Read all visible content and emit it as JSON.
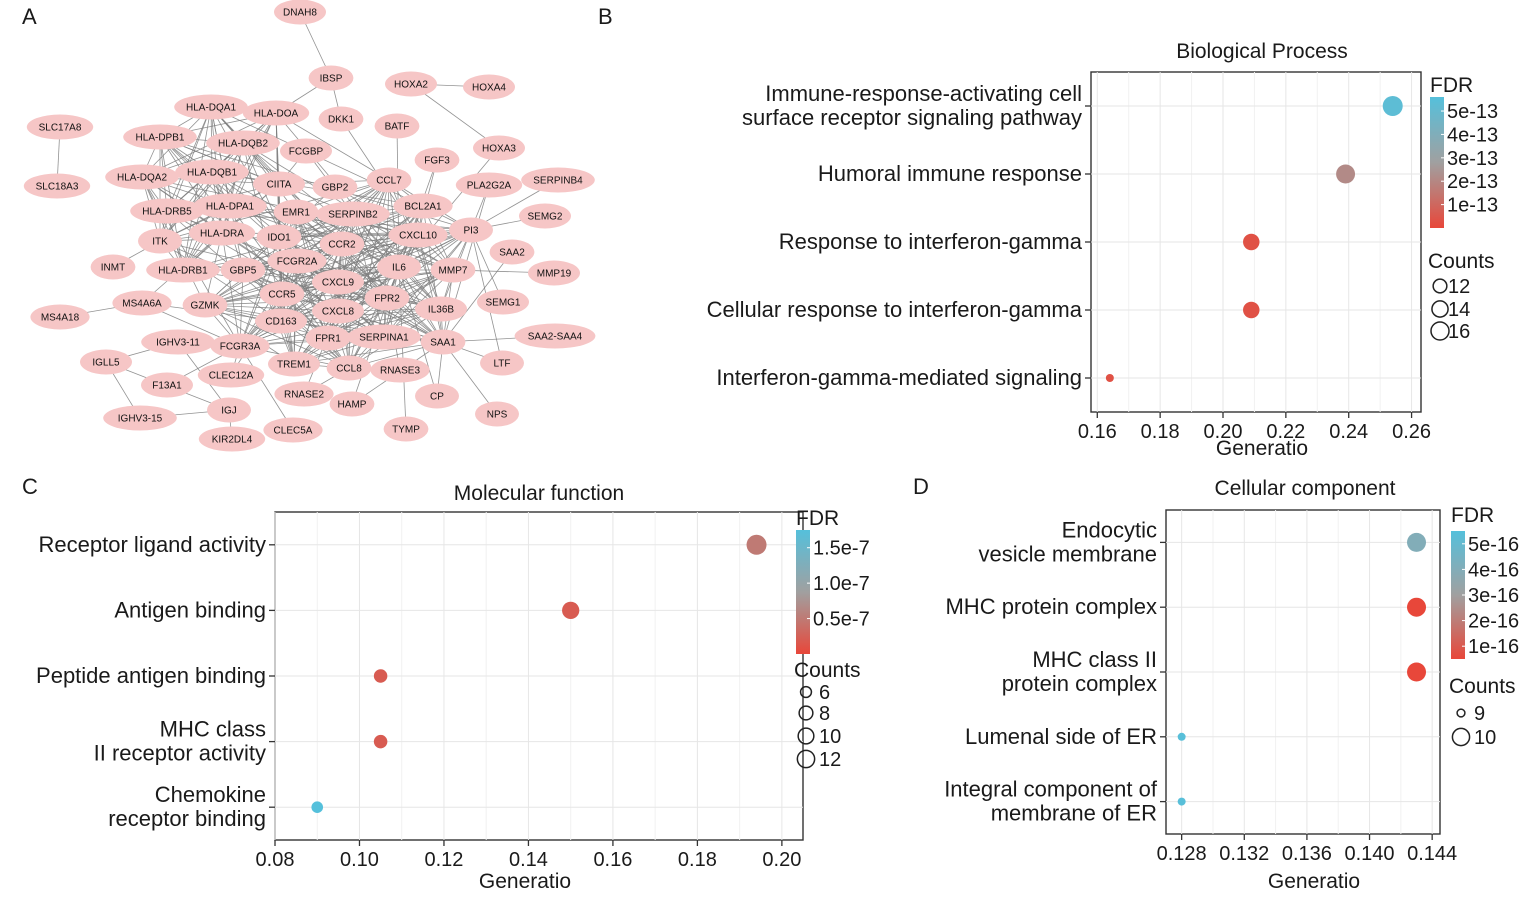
{
  "panels": {
    "A": "A",
    "B": "B",
    "C": "C",
    "D": "D"
  },
  "network": {
    "node_color": "#f6c6c6",
    "edge_color": "#7f7f7f",
    "nodes": [
      "DNAH8",
      "IBSP",
      "HOXA2",
      "HOXA4",
      "HLA-DQA1",
      "HLA-DOA",
      "SLC17A8",
      "HLA-DPB1",
      "HLA-DQB2",
      "DKK1",
      "BATF",
      "HOXA3",
      "FCGBP",
      "HLA-DQA2",
      "HLA-DQB1",
      "CIITA",
      "FGF3",
      "SLC18A3",
      "GBP2",
      "CCL7",
      "PLA2G2A",
      "SERPINB4",
      "HLA-DRB5",
      "HLA-DPA1",
      "EMR1",
      "SERPINB2",
      "BCL2A1",
      "SEMG2",
      "ITK",
      "HLA-DRA",
      "IDO1",
      "CCR2",
      "CXCL10",
      "PI3",
      "SAA2",
      "INMT",
      "HLA-DRB1",
      "GBP5",
      "FCGR2A",
      "IL6",
      "MMP7",
      "MMP19",
      "CXCL9",
      "MS4A6A",
      "CCR5",
      "FPR2",
      "SEMG1",
      "MS4A18",
      "GZMK",
      "CD163",
      "CXCL8",
      "IL36B",
      "FPR1",
      "SERPINA1",
      "SAA1",
      "SAA2-SAA4",
      "IGHV3-11",
      "FCGR3A",
      "IGLL5",
      "TREM1",
      "CCL8",
      "RNASE3",
      "LTF",
      "F13A1",
      "CLEC12A",
      "HAMP",
      "CP",
      "RNASE2",
      "NPS",
      "IGHV3-15",
      "IGJ",
      "TYMP",
      "KIR2DL4",
      "CLEC5A"
    ]
  },
  "colors": {
    "fdr_low": "#e8473a",
    "fdr_mid": "#a0a0a0",
    "fdr_high": "#55c0db",
    "grid": "#e6e6e6",
    "axis": "#333333"
  },
  "chart_data": [
    {
      "id": "B",
      "type": "scatter",
      "title": "Biological Process",
      "xlabel": "Generatio",
      "ylabel": "",
      "xlim": [
        0.158,
        0.263
      ],
      "xticks": [
        0.16,
        0.18,
        0.2,
        0.22,
        0.24,
        0.26
      ],
      "xtick_labels": [
        "0.16",
        "0.18",
        "0.20",
        "0.22",
        "0.24",
        "0.26"
      ],
      "categories": [
        [
          "Immune-response-activating cell",
          "surface receptor signaling pathway"
        ],
        [
          "Humoral immune response"
        ],
        [
          "Response to interferon-gamma"
        ],
        [
          "Cellular response to interferon-gamma"
        ],
        [
          "Interferon-gamma-mediated signaling"
        ]
      ],
      "points": [
        {
          "generatio": 0.254,
          "fdr": 5.3e-13,
          "count": 16
        },
        {
          "generatio": 0.239,
          "fdr": 2.1e-13,
          "count": 15
        },
        {
          "generatio": 0.209,
          "fdr": 3e-14,
          "count": 13
        },
        {
          "generatio": 0.209,
          "fdr": 3e-14,
          "count": 13
        },
        {
          "generatio": 0.164,
          "fdr": 3e-14,
          "count": 10
        }
      ],
      "fdr_range": [
        0,
        5.6e-13
      ],
      "count_range": [
        10,
        16
      ],
      "legend": {
        "fdr_title": "FDR",
        "fdr_breaks": [
          5e-13,
          4e-13,
          3e-13,
          2e-13,
          1e-13
        ],
        "fdr_labels": [
          "5e-13",
          "4e-13",
          "3e-13",
          "2e-13",
          "1e-13"
        ],
        "counts_title": "Counts",
        "counts_breaks": [
          12,
          14,
          16
        ],
        "counts_labels": [
          "12",
          "14",
          "16"
        ]
      }
    },
    {
      "id": "C",
      "type": "scatter",
      "title": "Molecular function",
      "xlabel": "Generatio",
      "ylabel": "",
      "xlim": [
        0.08,
        0.205
      ],
      "xticks": [
        0.08,
        0.1,
        0.12,
        0.14,
        0.16,
        0.18,
        0.2
      ],
      "xtick_labels": [
        "0.08",
        "0.10",
        "0.12",
        "0.14",
        "0.16",
        "0.18",
        "0.20"
      ],
      "categories": [
        [
          "Receptor ligand activity"
        ],
        [
          "Antigen binding"
        ],
        [
          "Peptide antigen binding"
        ],
        [
          "MHC class",
          "II receptor activity"
        ],
        [
          "Chemokine",
          "receptor binding"
        ]
      ],
      "points": [
        {
          "generatio": 0.194,
          "fdr": 5e-08,
          "count": 13
        },
        {
          "generatio": 0.15,
          "fdr": 2e-08,
          "count": 10
        },
        {
          "generatio": 0.105,
          "fdr": 2e-08,
          "count": 7
        },
        {
          "generatio": 0.105,
          "fdr": 2e-08,
          "count": 7
        },
        {
          "generatio": 0.09,
          "fdr": 1.75e-07,
          "count": 6
        }
      ],
      "fdr_range": [
        0,
        1.75e-07
      ],
      "count_range": [
        5,
        13
      ],
      "legend": {
        "fdr_title": "FDR",
        "fdr_breaks": [
          1.5e-07,
          1e-07,
          5e-08
        ],
        "fdr_labels": [
          "1.5e-7",
          "1.0e-7",
          "0.5e-7"
        ],
        "counts_title": "Counts",
        "counts_breaks": [
          6,
          8,
          10,
          12
        ],
        "counts_labels": [
          "6",
          "8",
          "10",
          "12"
        ]
      }
    },
    {
      "id": "D",
      "type": "scatter",
      "title": "Cellular component",
      "xlabel": "Generatio",
      "ylabel": "",
      "xlim": [
        0.127,
        0.1445
      ],
      "xticks": [
        0.128,
        0.132,
        0.136,
        0.14,
        0.144
      ],
      "xtick_labels": [
        "0.128",
        "0.132",
        "0.136",
        "0.140",
        "0.144"
      ],
      "categories": [
        [
          "Endocytic",
          "vesicle membrane"
        ],
        [
          "MHC protein complex"
        ],
        [
          "MHC class II",
          "protein complex"
        ],
        [
          "Lumenal side of ER"
        ],
        [
          "Integral component of",
          "membrane of ER"
        ]
      ],
      "points": [
        {
          "generatio": 0.143,
          "fdr": 4e-16,
          "count": 10
        },
        {
          "generatio": 0.143,
          "fdr": 5e-17,
          "count": 10
        },
        {
          "generatio": 0.143,
          "fdr": 5e-17,
          "count": 10
        },
        {
          "generatio": 0.128,
          "fdr": 5.4e-16,
          "count": 9
        },
        {
          "generatio": 0.128,
          "fdr": 5.4e-16,
          "count": 9
        }
      ],
      "fdr_range": [
        5e-17,
        5.5e-16
      ],
      "count_range": [
        9,
        10
      ],
      "legend": {
        "fdr_title": "FDR",
        "fdr_breaks": [
          5e-16,
          4e-16,
          3e-16,
          2e-16,
          1e-16
        ],
        "fdr_labels": [
          "5e-16",
          "4e-16",
          "3e-16",
          "2e-16",
          "1e-16"
        ],
        "counts_title": "Counts",
        "counts_breaks": [
          9,
          10
        ],
        "counts_labels": [
          "9",
          "10"
        ]
      }
    }
  ]
}
